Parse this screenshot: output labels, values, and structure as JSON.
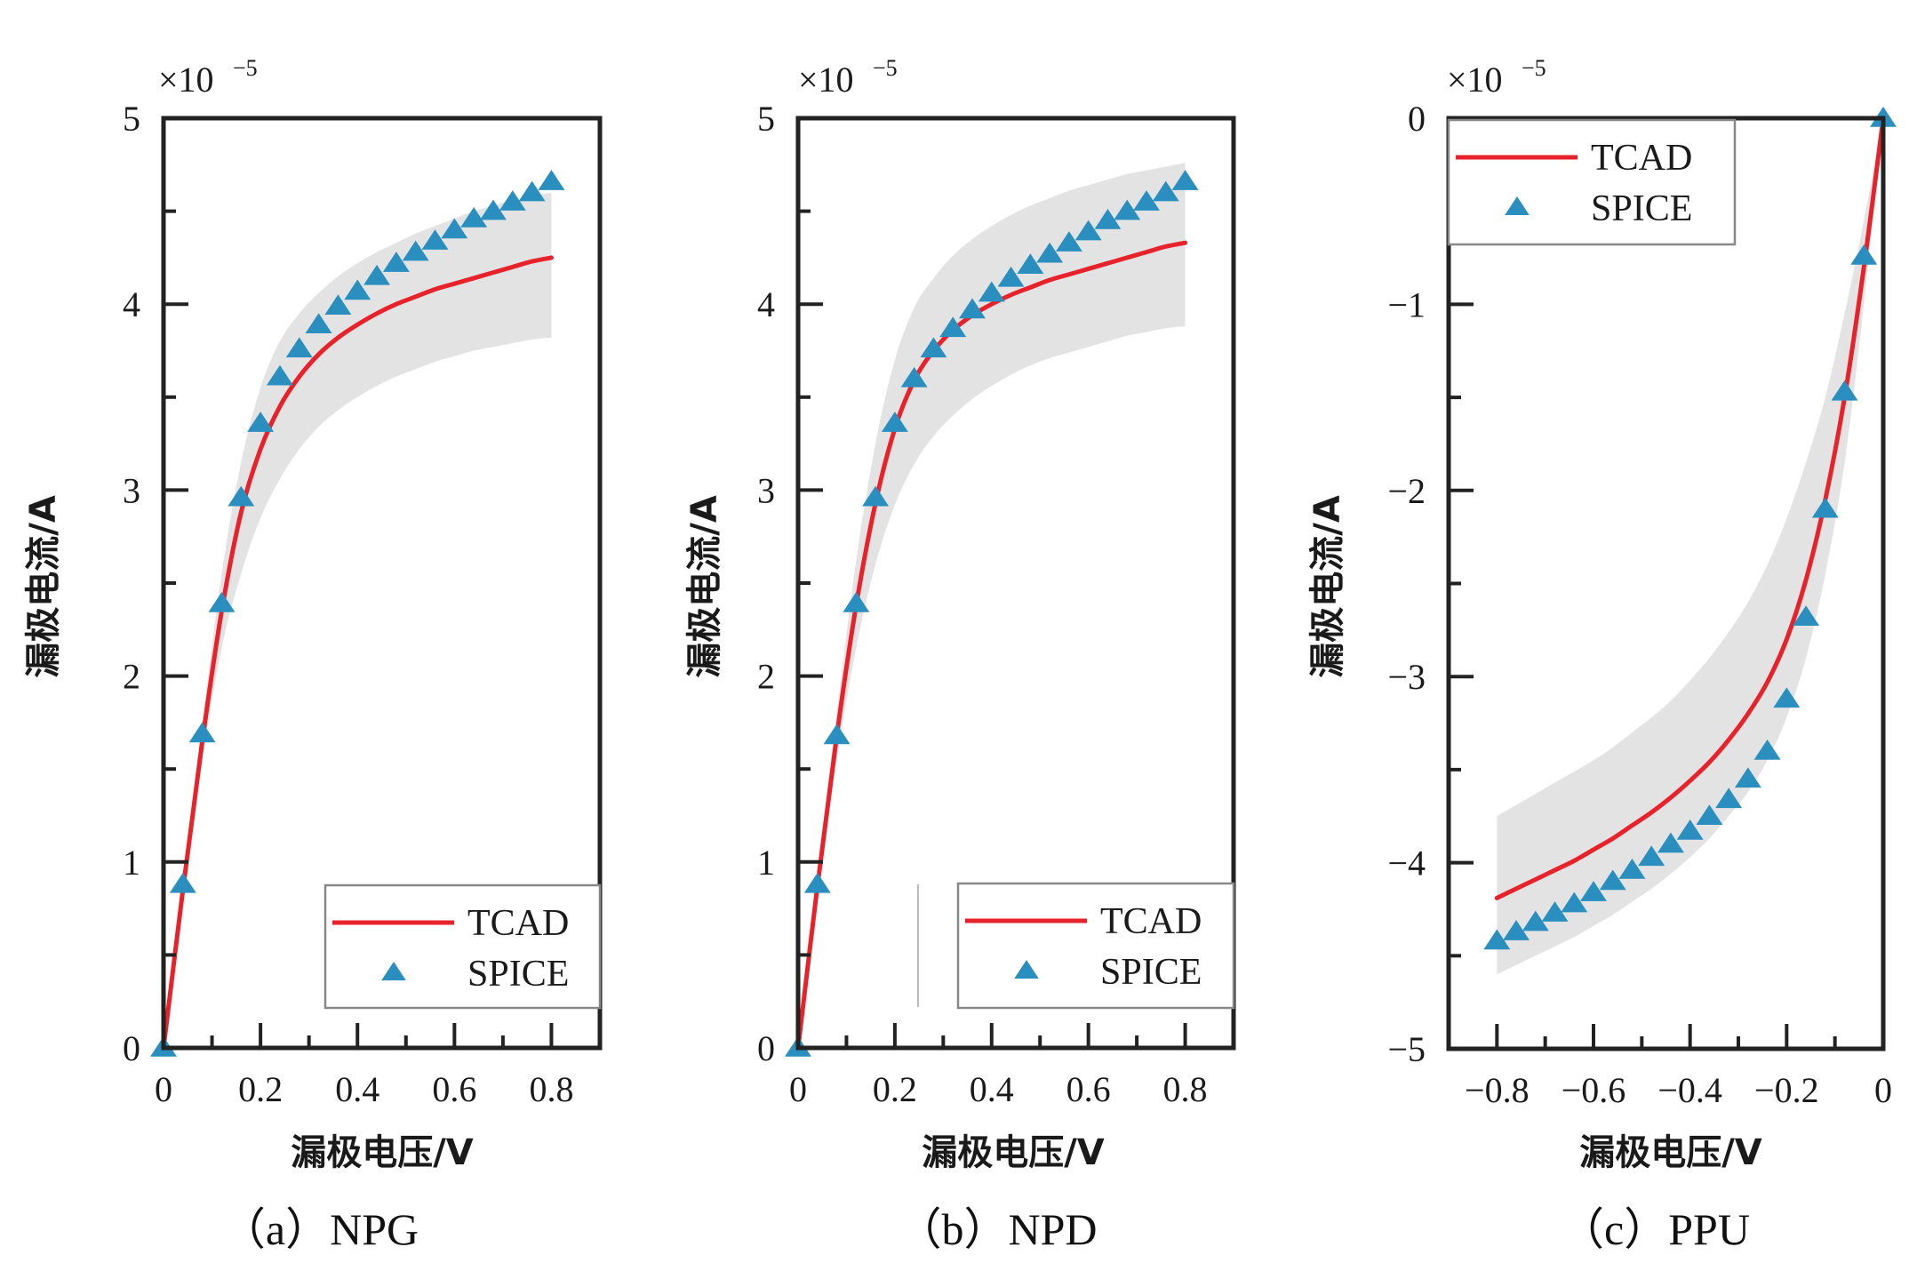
{
  "figure_captions": [
    "（a）NPG",
    "（b）NPD",
    "（c）PPU"
  ],
  "chart_data": [
    {
      "type": "line",
      "panel": "a",
      "title": "（a）NPG",
      "xlabel": "漏极电压/V",
      "ylabel": "漏极电流/A",
      "y_multiplier": "×10⁻⁵",
      "xlim": [
        0,
        0.9
      ],
      "ylim": [
        0,
        5
      ],
      "xticks": [
        0,
        0.2,
        0.4,
        0.6,
        0.8
      ],
      "xtick_labels": [
        "0",
        "0.2",
        "0.4",
        "0.6",
        "0.8"
      ],
      "yticks": [
        0,
        1,
        2,
        3,
        4,
        5
      ],
      "ytick_labels": [
        "0",
        "1",
        "2",
        "3",
        "4",
        "5"
      ],
      "grid": false,
      "legend": {
        "position": "bottom-right",
        "entries": [
          "TCAD",
          "SPICE"
        ]
      },
      "colors": {
        "TCAD": "#e8222a",
        "SPICE": "#2a8fbf",
        "band": "#e3e3e3"
      },
      "x": [
        0,
        0.04,
        0.08,
        0.12,
        0.16,
        0.2,
        0.24,
        0.28,
        0.32,
        0.36,
        0.4,
        0.44,
        0.48,
        0.52,
        0.56,
        0.6,
        0.64,
        0.68,
        0.72,
        0.76,
        0.8
      ],
      "series": [
        {
          "name": "TCAD",
          "style": "line",
          "values": [
            0,
            0.85,
            1.65,
            2.35,
            2.88,
            3.22,
            3.45,
            3.61,
            3.73,
            3.82,
            3.89,
            3.95,
            4.0,
            4.04,
            4.08,
            4.11,
            4.14,
            4.17,
            4.2,
            4.23,
            4.25
          ]
        },
        {
          "name": "SPICE",
          "style": "triangle-marker",
          "values": [
            0,
            0.88,
            1.69,
            2.39,
            2.96,
            3.36,
            3.61,
            3.76,
            3.89,
            3.99,
            4.07,
            4.15,
            4.22,
            4.28,
            4.34,
            4.4,
            4.46,
            4.5,
            4.55,
            4.6,
            4.66
          ]
        },
        {
          "name": "band-upper",
          "style": "fill",
          "values": [
            0,
            0.9,
            1.75,
            2.55,
            3.15,
            3.55,
            3.8,
            3.95,
            4.06,
            4.15,
            4.22,
            4.28,
            4.33,
            4.38,
            4.42,
            4.46,
            4.5,
            4.53,
            4.56,
            4.58,
            4.6
          ]
        },
        {
          "name": "band-lower",
          "style": "fill",
          "values": [
            0,
            0.8,
            1.55,
            2.15,
            2.55,
            2.85,
            3.06,
            3.22,
            3.34,
            3.43,
            3.5,
            3.56,
            3.61,
            3.65,
            3.69,
            3.72,
            3.75,
            3.77,
            3.79,
            3.81,
            3.82
          ]
        }
      ]
    },
    {
      "type": "line",
      "panel": "b",
      "title": "（b）NPD",
      "xlabel": "漏极电压/V",
      "ylabel": "漏极电流/A",
      "y_multiplier": "×10⁻⁵",
      "xlim": [
        0,
        0.9
      ],
      "ylim": [
        0,
        5
      ],
      "xticks": [
        0,
        0.2,
        0.4,
        0.6,
        0.8
      ],
      "xtick_labels": [
        "0",
        "0.2",
        "0.4",
        "0.6",
        "0.8"
      ],
      "yticks": [
        0,
        1,
        2,
        3,
        4,
        5
      ],
      "ytick_labels": [
        "0",
        "1",
        "2",
        "3",
        "4",
        "5"
      ],
      "grid": false,
      "legend": {
        "position": "bottom-right",
        "entries": [
          "TCAD",
          "SPICE"
        ]
      },
      "colors": {
        "TCAD": "#e8222a",
        "SPICE": "#2a8fbf",
        "band": "#e3e3e3"
      },
      "x": [
        0,
        0.04,
        0.08,
        0.12,
        0.16,
        0.2,
        0.24,
        0.28,
        0.32,
        0.36,
        0.4,
        0.44,
        0.48,
        0.52,
        0.56,
        0.6,
        0.64,
        0.68,
        0.72,
        0.76,
        0.8
      ],
      "series": [
        {
          "name": "TCAD",
          "style": "line",
          "values": [
            0,
            0.87,
            1.68,
            2.38,
            2.93,
            3.33,
            3.59,
            3.75,
            3.86,
            3.94,
            4.0,
            4.05,
            4.09,
            4.13,
            4.16,
            4.19,
            4.22,
            4.25,
            4.28,
            4.31,
            4.33
          ]
        },
        {
          "name": "SPICE",
          "style": "triangle-marker",
          "values": [
            0,
            0.88,
            1.68,
            2.39,
            2.96,
            3.36,
            3.6,
            3.76,
            3.87,
            3.97,
            4.06,
            4.14,
            4.21,
            4.27,
            4.33,
            4.39,
            4.45,
            4.5,
            4.55,
            4.6,
            4.66
          ]
        },
        {
          "name": "band-upper",
          "style": "fill",
          "values": [
            0,
            0.92,
            1.8,
            2.62,
            3.25,
            3.7,
            3.98,
            4.14,
            4.26,
            4.35,
            4.42,
            4.48,
            4.53,
            4.57,
            4.61,
            4.64,
            4.67,
            4.7,
            4.72,
            4.74,
            4.76
          ]
        },
        {
          "name": "band-lower",
          "style": "fill",
          "values": [
            0,
            0.82,
            1.55,
            2.15,
            2.6,
            2.92,
            3.14,
            3.29,
            3.4,
            3.49,
            3.56,
            3.62,
            3.67,
            3.71,
            3.74,
            3.77,
            3.8,
            3.83,
            3.85,
            3.87,
            3.88
          ]
        }
      ]
    },
    {
      "type": "line",
      "panel": "c",
      "title": "（c）PPU",
      "xlabel": "漏极电压/V",
      "ylabel": "漏极电流/A",
      "y_multiplier": "×10⁻⁵",
      "xlim": [
        -0.9,
        0
      ],
      "ylim": [
        -5,
        0
      ],
      "xticks": [
        -0.8,
        -0.6,
        -0.4,
        -0.2,
        0
      ],
      "xtick_labels": [
        "−0.8",
        "−0.6",
        "−0.4",
        "−0.2",
        "0"
      ],
      "yticks": [
        -5,
        -4,
        -3,
        -2,
        -1,
        0
      ],
      "ytick_labels": [
        "−5",
        "−4",
        "−3",
        "−2",
        "−1",
        "0"
      ],
      "grid": false,
      "legend": {
        "position": "top-left",
        "entries": [
          "TCAD",
          "SPICE"
        ]
      },
      "colors": {
        "TCAD": "#e8222a",
        "SPICE": "#2a8fbf",
        "band": "#e3e3e3"
      },
      "x": [
        -0.8,
        -0.76,
        -0.72,
        -0.68,
        -0.64,
        -0.6,
        -0.56,
        -0.52,
        -0.48,
        -0.44,
        -0.4,
        -0.36,
        -0.32,
        -0.28,
        -0.24,
        -0.2,
        -0.16,
        -0.12,
        -0.08,
        -0.04,
        0
      ],
      "series": [
        {
          "name": "TCAD",
          "style": "line",
          "values": [
            -4.19,
            -4.14,
            -4.09,
            -4.04,
            -3.99,
            -3.93,
            -3.87,
            -3.8,
            -3.73,
            -3.65,
            -3.56,
            -3.46,
            -3.34,
            -3.2,
            -3.03,
            -2.8,
            -2.48,
            -2.05,
            -1.5,
            -0.8,
            0
          ]
        },
        {
          "name": "SPICE",
          "style": "triangle-marker",
          "values": [
            -4.42,
            -4.37,
            -4.32,
            -4.27,
            -4.22,
            -4.16,
            -4.1,
            -4.04,
            -3.97,
            -3.9,
            -3.83,
            -3.75,
            -3.66,
            -3.55,
            -3.4,
            -3.12,
            -2.68,
            -2.1,
            -1.47,
            -0.74,
            0
          ]
        },
        {
          "name": "band-upper",
          "style": "fill",
          "values": [
            -3.75,
            -3.69,
            -3.63,
            -3.57,
            -3.51,
            -3.45,
            -3.38,
            -3.3,
            -3.22,
            -3.13,
            -3.02,
            -2.9,
            -2.76,
            -2.6,
            -2.4,
            -2.15,
            -1.85,
            -1.5,
            -1.05,
            -0.55,
            0
          ]
        },
        {
          "name": "band-lower",
          "style": "fill",
          "values": [
            -4.6,
            -4.55,
            -4.5,
            -4.45,
            -4.4,
            -4.34,
            -4.28,
            -4.21,
            -4.14,
            -4.06,
            -3.97,
            -3.87,
            -3.75,
            -3.62,
            -3.45,
            -3.22,
            -2.9,
            -2.45,
            -1.85,
            -1.0,
            0
          ]
        }
      ]
    }
  ]
}
